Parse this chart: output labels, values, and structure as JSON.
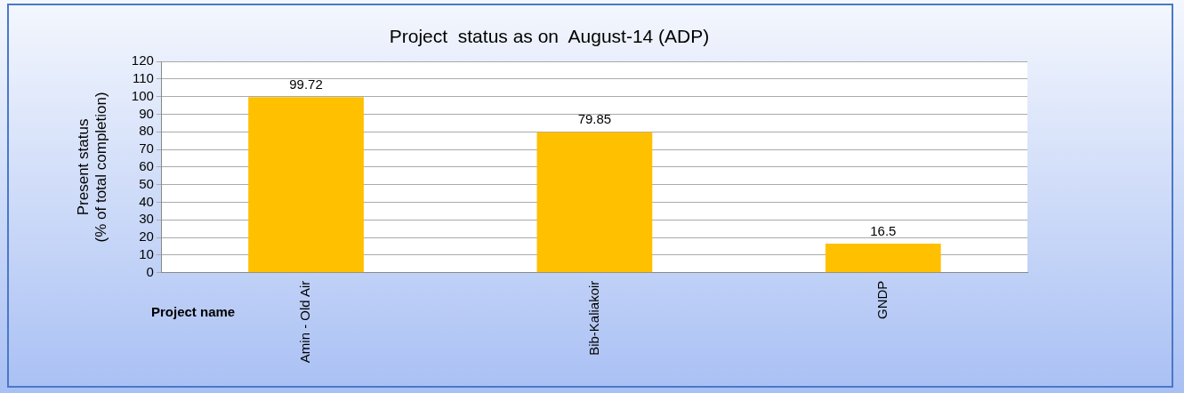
{
  "chart_data": {
    "type": "bar",
    "title": "Project  status as on  August-14 (ADP)",
    "xlabel": "Project name",
    "ylabel": "Present status\n(% of total completion)",
    "categories": [
      "Amin - Old Air",
      "Bib-Kaliakoir",
      "GNDP"
    ],
    "values": [
      99.72,
      79.85,
      16.5
    ],
    "color": "#ffc000",
    "ylim": [
      0,
      120
    ],
    "yticks": [
      0,
      10,
      20,
      30,
      40,
      50,
      60,
      70,
      80,
      90,
      100,
      110,
      120
    ],
    "grid": "y",
    "data_labels": true
  }
}
